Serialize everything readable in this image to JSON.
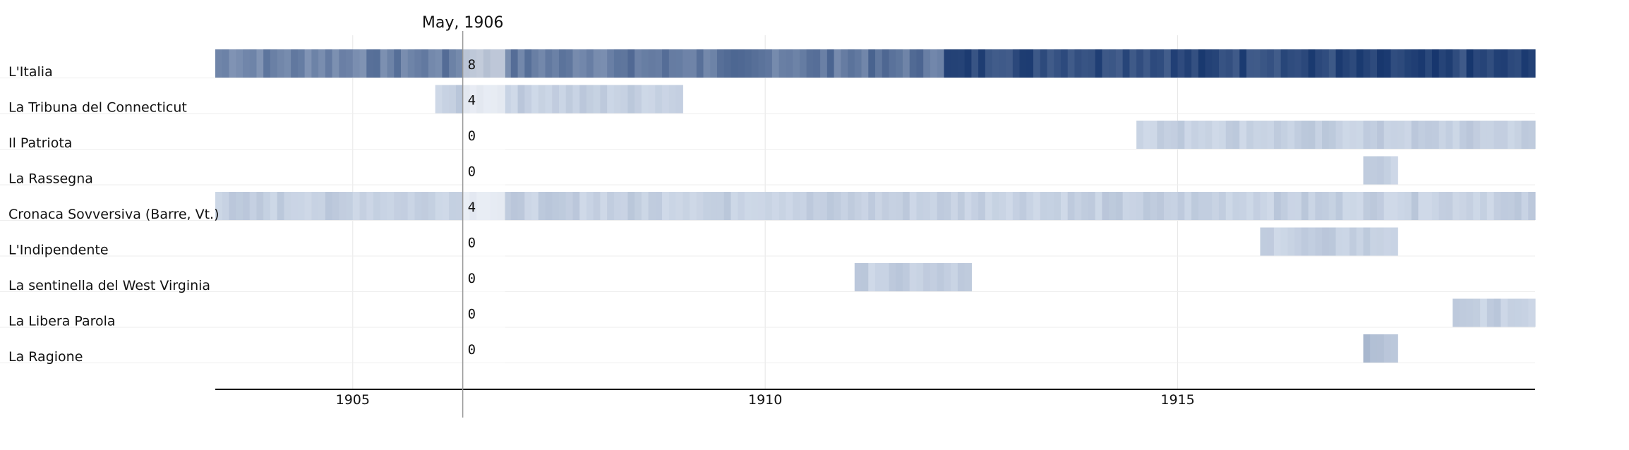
{
  "chart_data": {
    "type": "heatmap",
    "rows": [
      "L'Italia",
      "La Tribuna del Connecticut",
      "Il Patriota",
      "La Rassegna",
      "Cronaca Sovversiva (Barre, Vt.)",
      "L'Indipendente",
      "La sentinella del West Virginia",
      "La Libera Parola",
      "La Ragione"
    ],
    "x_range": [
      "1903-05",
      "1919-05"
    ],
    "x_ticks": [
      "1905",
      "1910",
      "1915"
    ],
    "grid": true,
    "color_scale": {
      "low": "#eaf1fa",
      "high": "#0b2c66"
    },
    "series": [
      {
        "start": "1903-05",
        "end": "1919-05",
        "level": [
          0.55,
          0.9
        ]
      },
      {
        "start": "1906-01",
        "end": "1909-01",
        "level": [
          0.12,
          0.22
        ]
      },
      {
        "start": "1914-07",
        "end": "1919-05",
        "level": [
          0.12,
          0.22
        ]
      },
      {
        "start": "1917-04",
        "end": "1917-09",
        "level": [
          0.12,
          0.25
        ]
      },
      {
        "start": "1903-05",
        "end": "1919-05",
        "level": [
          0.12,
          0.22
        ]
      },
      {
        "start": "1916-01",
        "end": "1917-09",
        "level": [
          0.12,
          0.22
        ]
      },
      {
        "start": "1911-02",
        "end": "1912-07",
        "level": [
          0.12,
          0.22
        ]
      },
      {
        "start": "1918-05",
        "end": "1919-05",
        "level": [
          0.12,
          0.22
        ]
      },
      {
        "start": "1917-04",
        "end": "1917-09",
        "level": [
          0.15,
          0.55
        ]
      }
    ],
    "hover": {
      "label": "May, 1906",
      "date": "1906-05",
      "values": [
        "8",
        "4",
        "0",
        "0",
        "4",
        "0",
        "0",
        "0",
        "0"
      ]
    }
  }
}
